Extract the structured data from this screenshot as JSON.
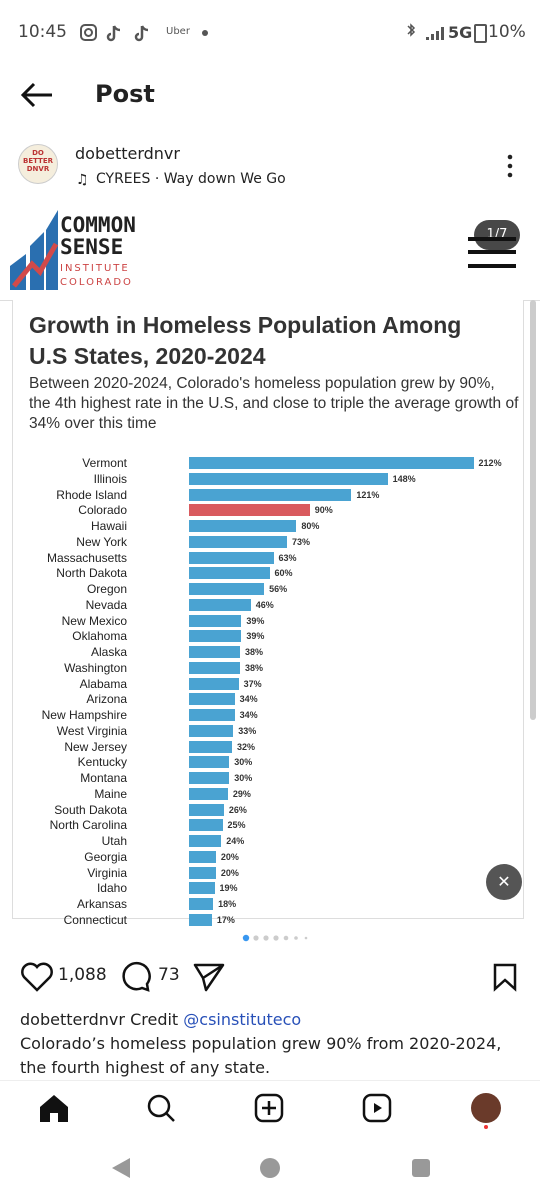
{
  "status_bar": {
    "time": "10:45",
    "app": "Uber",
    "network": "5G",
    "battery": "10%"
  },
  "header": {
    "title": "Post"
  },
  "post": {
    "username": "dobetterdnvr",
    "avatar_text": "DO BETTER DNVR",
    "music": "CYREES · Way down We Go",
    "logo": {
      "line1": "COMMON",
      "line2": "SENSE",
      "line3": "INSTITUTE",
      "line4": "COLORADO"
    },
    "page_badge": "1/7",
    "chart_data": {
      "type": "bar",
      "orientation": "horizontal",
      "title": "Growth in Homeless Population Among U.S States, 2020-2024",
      "subtitle": "Between 2020-2024, Colorado's homeless population grew by 90%, the 4th highest rate in the U.S, and close to triple the average growth of 34% over this time",
      "categories": [
        "Vermont",
        "Illinois",
        "Rhode Island",
        "Colorado",
        "Hawaii",
        "New York",
        "Massachusetts",
        "North Dakota",
        "Oregon",
        "Nevada",
        "New Mexico",
        "Oklahoma",
        "Alaska",
        "Washington",
        "Alabama",
        "Arizona",
        "New Hampshire",
        "West Virginia",
        "New Jersey",
        "Kentucky",
        "Montana",
        "Maine",
        "South Dakota",
        "North Carolina",
        "Utah",
        "Georgia",
        "Virginia",
        "Idaho",
        "Arkansas",
        "Connecticut"
      ],
      "values": [
        212,
        148,
        121,
        90,
        80,
        73,
        63,
        60,
        56,
        46,
        39,
        39,
        38,
        38,
        37,
        34,
        34,
        33,
        32,
        30,
        30,
        29,
        26,
        25,
        24,
        20,
        20,
        19,
        18,
        17
      ],
      "value_labels": [
        "212%",
        "148%",
        "121%",
        "90%",
        "80%",
        "73%",
        "63%",
        "60%",
        "56%",
        "46%",
        "39%",
        "39%",
        "38%",
        "38%",
        "37%",
        "34%",
        "34%",
        "33%",
        "32%",
        "30%",
        "30%",
        "29%",
        "26%",
        "25%",
        "24%",
        "20%",
        "20%",
        "19%",
        "18%",
        "17%"
      ],
      "colors": [
        "#4aa3d2",
        "#4aa3d2",
        "#4aa3d2",
        "#d95a5e",
        "#4aa3d2",
        "#4aa3d2",
        "#4aa3d2",
        "#4aa3d2",
        "#4aa3d2",
        "#4aa3d2",
        "#4aa3d2",
        "#4aa3d2",
        "#4aa3d2",
        "#4aa3d2",
        "#4aa3d2",
        "#4aa3d2",
        "#4aa3d2",
        "#4aa3d2",
        "#4aa3d2",
        "#4aa3d2",
        "#4aa3d2",
        "#4aa3d2",
        "#4aa3d2",
        "#4aa3d2",
        "#4aa3d2",
        "#4aa3d2",
        "#4aa3d2",
        "#4aa3d2",
        "#4aa3d2",
        "#4aa3d2"
      ],
      "xlim": [
        0,
        225
      ]
    },
    "likes": "1,088",
    "comments": "73",
    "caption": {
      "user": "dobetterdnvr",
      "credit": "Credit",
      "mention": "@csinstituteco",
      "body": "Colorado’s homeless population grew 90% from 2020-2024, the fourth highest of any state."
    }
  }
}
